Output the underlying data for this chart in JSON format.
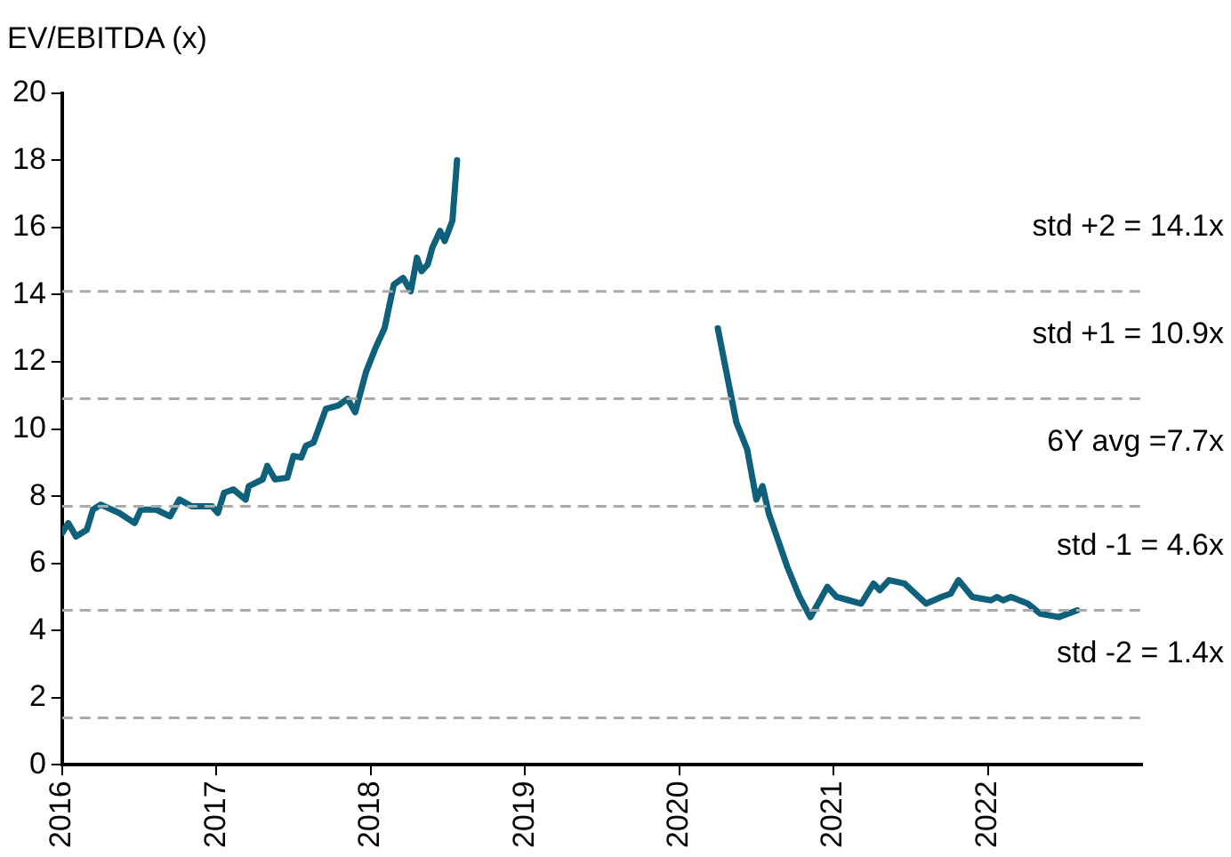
{
  "chart_data": {
    "type": "line",
    "title": "EV/EBITDA (x)",
    "x": [
      2016.0,
      2016.04,
      2016.09,
      2016.16,
      2016.2,
      2016.25,
      2016.37,
      2016.47,
      2016.51,
      2016.61,
      2016.7,
      2016.76,
      2016.84,
      2016.97,
      2017.01,
      2017.05,
      2017.11,
      2017.19,
      2017.21,
      2017.3,
      2017.33,
      2017.38,
      2017.46,
      2017.5,
      2017.55,
      2017.58,
      2017.63,
      2017.71,
      2017.79,
      2017.85,
      2017.9,
      2017.97,
      2018.03,
      2018.09,
      2018.15,
      2018.21,
      2018.26,
      2018.3,
      2018.33,
      2018.37,
      2018.4,
      2018.45,
      2018.48,
      2018.53,
      2018.56,
      2019.4,
      2020.25,
      2020.37,
      2020.44,
      2020.5,
      2020.54,
      2020.58,
      2020.7,
      2020.78,
      2020.85,
      2020.9,
      2020.96,
      2021.02,
      2021.1,
      2021.18,
      2021.26,
      2021.3,
      2021.36,
      2021.46,
      2021.6,
      2021.7,
      2021.76,
      2021.81,
      2021.9,
      2022.02,
      2022.06,
      2022.1,
      2022.15,
      2022.26,
      2022.34,
      2022.46,
      2022.58
    ],
    "series": [
      {
        "color": "#0f607a",
        "values": [
          6.9,
          7.2,
          6.8,
          7.0,
          7.6,
          7.75,
          7.5,
          7.2,
          7.6,
          7.6,
          7.4,
          7.9,
          7.7,
          7.7,
          7.5,
          8.1,
          8.2,
          7.9,
          8.3,
          8.5,
          8.9,
          8.5,
          8.55,
          9.2,
          9.15,
          9.5,
          9.6,
          10.6,
          10.7,
          10.9,
          10.5,
          11.7,
          12.4,
          13.0,
          14.3,
          14.5,
          14.1,
          15.1,
          14.7,
          14.9,
          15.4,
          15.9,
          15.6,
          16.2,
          18.0,
          null,
          13.0,
          10.2,
          9.4,
          7.9,
          8.3,
          7.5,
          5.9,
          5.0,
          4.4,
          4.8,
          5.3,
          5.0,
          4.9,
          4.8,
          5.4,
          5.2,
          5.5,
          5.4,
          4.8,
          5.0,
          5.1,
          5.5,
          5.0,
          4.9,
          5.0,
          4.9,
          5.0,
          4.8,
          4.5,
          4.4,
          4.6
        ]
      }
    ],
    "xlim": [
      2016,
      2023
    ],
    "xticks": [
      2016,
      2017,
      2018,
      2019,
      2020,
      2021,
      2022
    ],
    "ylim": [
      0,
      20
    ],
    "yticks": [
      0,
      2,
      4,
      6,
      8,
      10,
      12,
      14,
      16,
      18,
      20
    ],
    "grid": false,
    "legend": false,
    "marker": "none",
    "line_style": "solid",
    "ref_lines": [
      {
        "axis": "y",
        "value": 14.1,
        "label": "std +2 = 14.1x",
        "color": "#aaaaaa",
        "line_style": "dashed"
      },
      {
        "axis": "y",
        "value": 10.9,
        "label": "std +1 = 10.9x",
        "color": "#aaaaaa",
        "line_style": "dashed"
      },
      {
        "axis": "y",
        "value": 7.7,
        "label": "6Y avg =7.7x",
        "color": "#aaaaaa",
        "line_style": "dashed"
      },
      {
        "axis": "y",
        "value": 4.6,
        "label": "std -1 = 4.6x",
        "color": "#aaaaaa",
        "line_style": "dashed"
      },
      {
        "axis": "y",
        "value": 1.4,
        "label": "std -2 = 1.4x",
        "color": "#aaaaaa",
        "line_style": "dashed"
      }
    ]
  }
}
